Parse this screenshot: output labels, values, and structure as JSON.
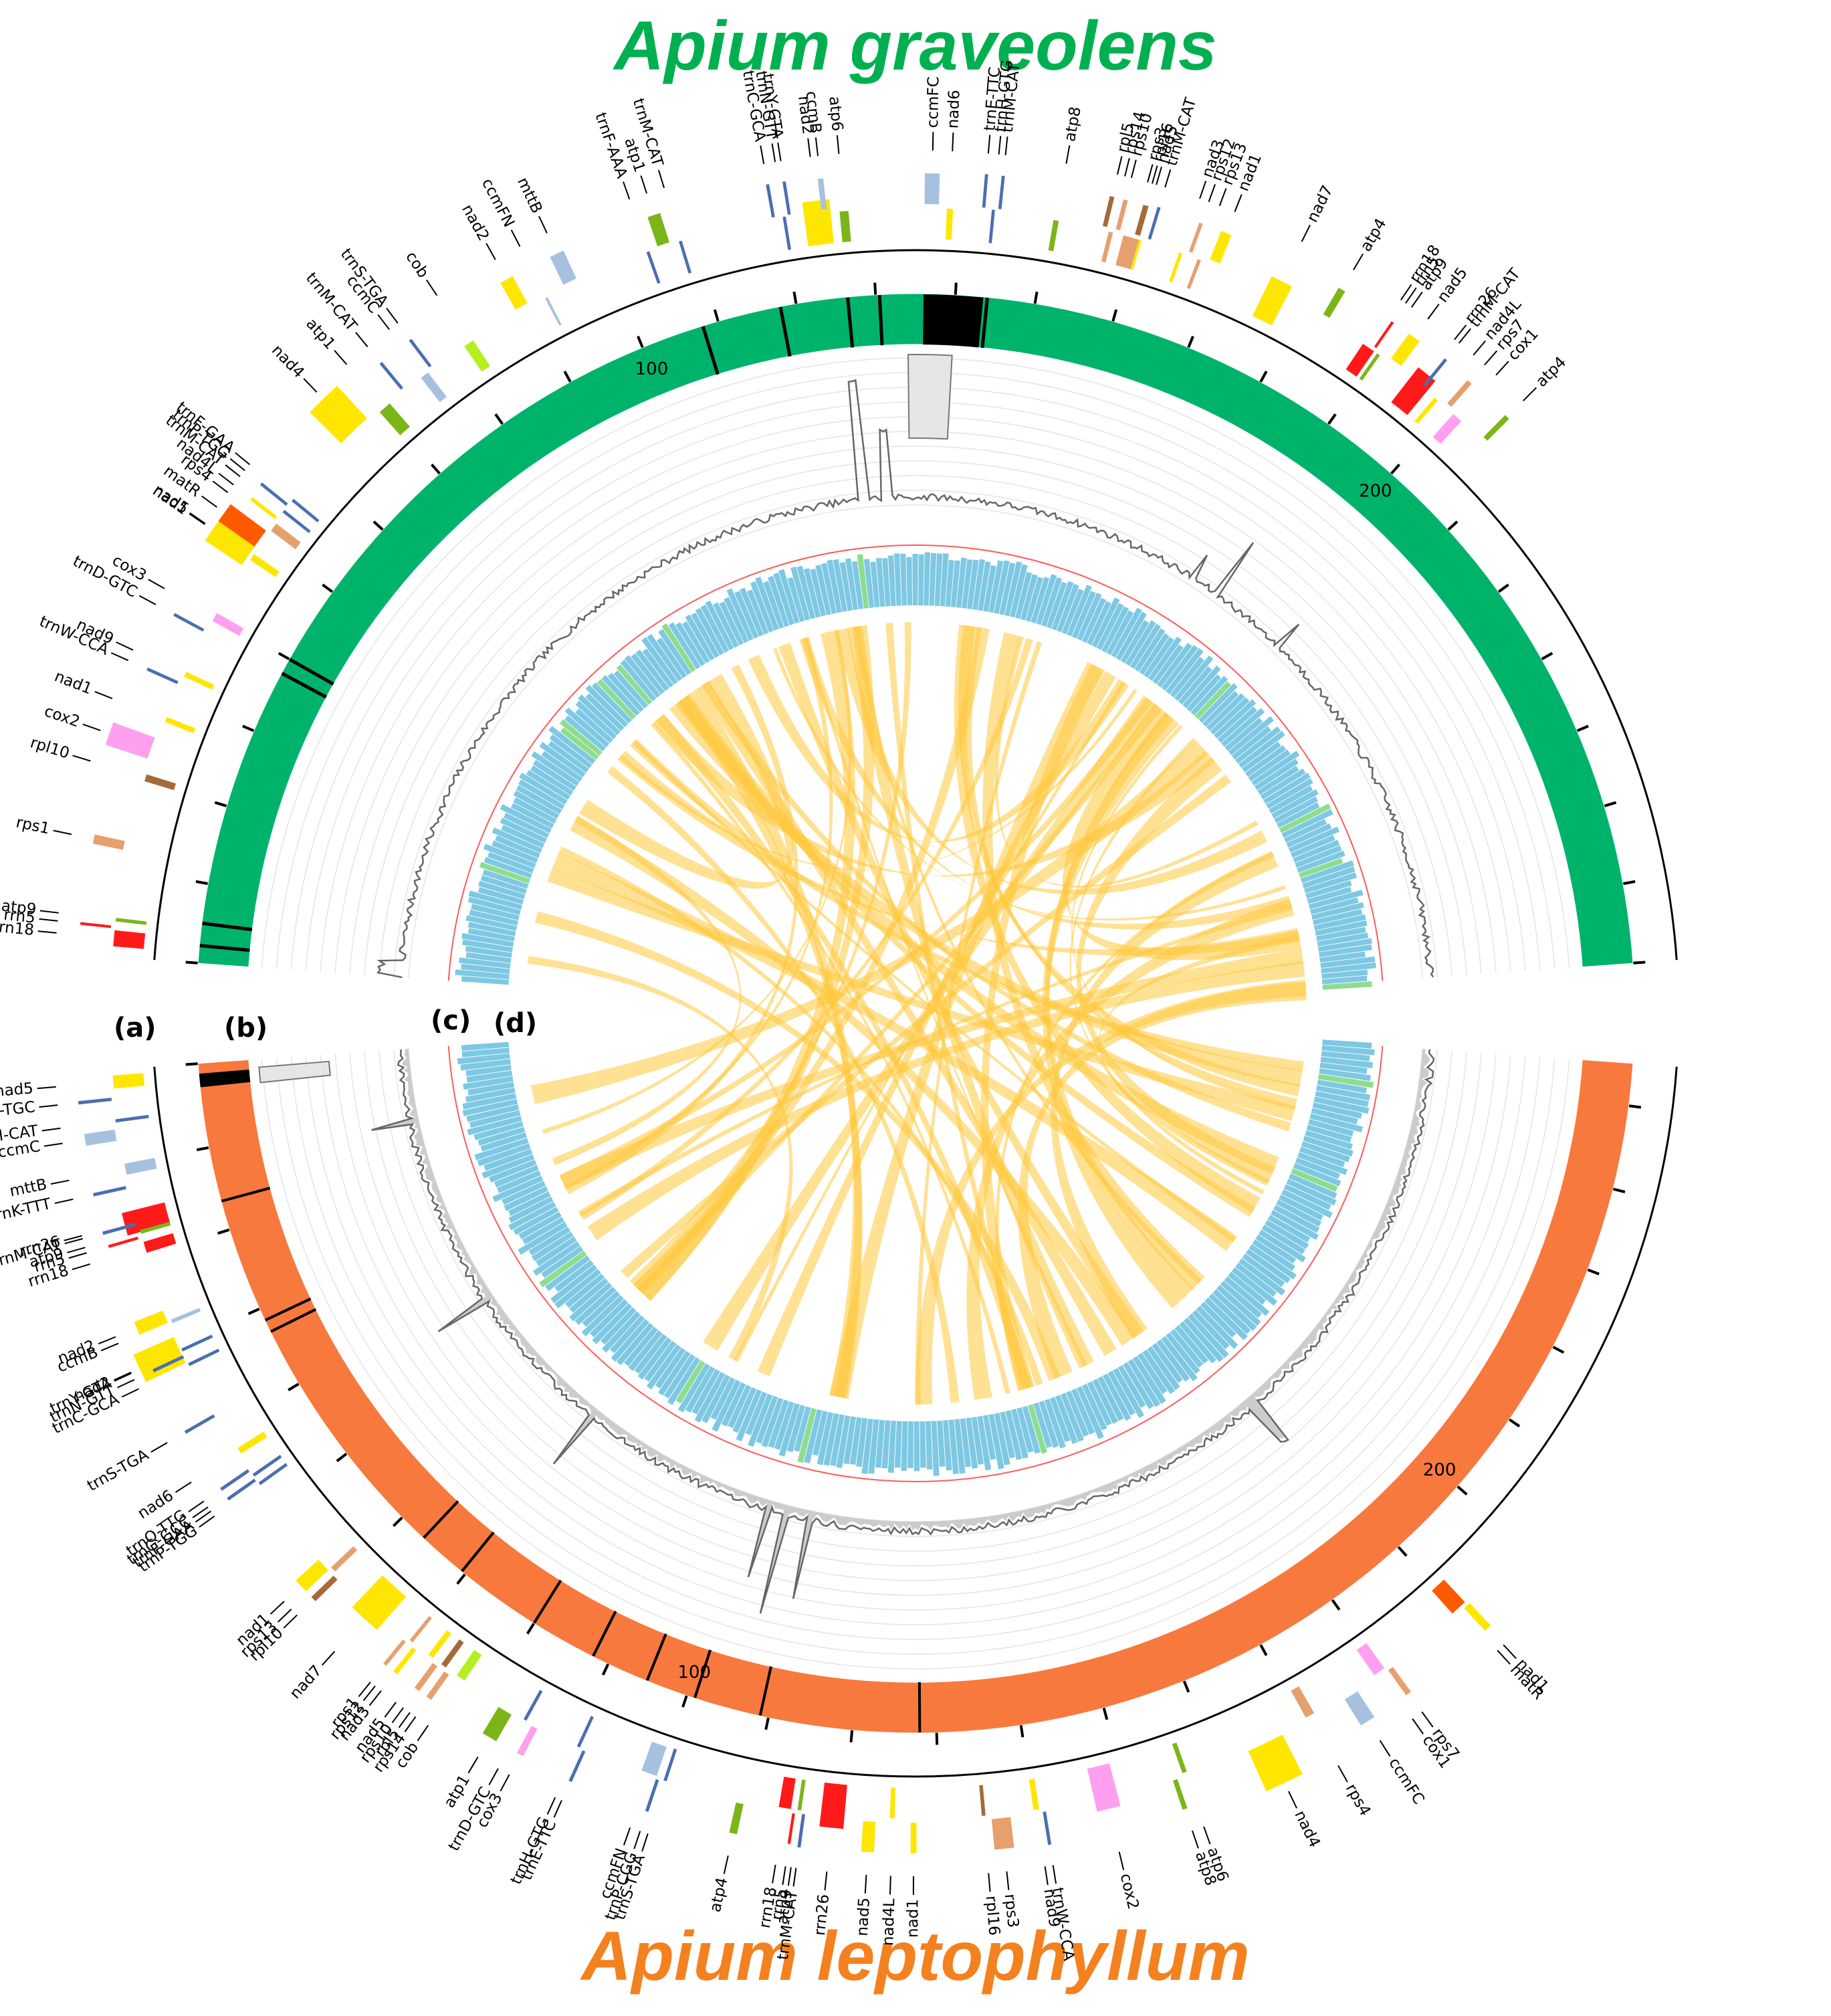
{
  "titles": {
    "top": "Apium graveolens",
    "top_color": "#00b050",
    "bottom": "Apium leptophyllum",
    "bottom_color": "#f4811f"
  },
  "panels": [
    "(a)",
    "(b)",
    "(c)",
    "(d)"
  ],
  "colors": {
    "graveolens_block": "#00b36b",
    "leptophyllum_block": "#f8793d",
    "gc_bar": "#7ec8e3",
    "gc_highlight": "#8fdc8f",
    "ref_line": "#ff5a5a",
    "link": "#ffc83c",
    "depth_line": "#666666",
    "depth_fill": "#cccccc",
    "trn": "#4a6fb0",
    "nad": "#ffe600",
    "atp": "#7cb518",
    "cox": "#ff9ff0",
    "ccm": "#a6c1e0",
    "rps": "#e6a06e",
    "rpl": "#a56a3a",
    "rrn": "#ff1a1a",
    "mat": "#ff5a00",
    "cob": "#b4f020",
    "mtt": "#a6c1e0"
  },
  "scale": {
    "top": {
      "ticks": [
        100,
        200
      ],
      "length": 270
    },
    "bottom": {
      "ticks": [
        100,
        200
      ],
      "length": 255
    }
  },
  "genes_top": [
    {
      "name": "rrn18",
      "type": "rrn",
      "pos": 1.2,
      "len": 1.8
    },
    {
      "name": "rrn5",
      "type": "rrn",
      "pos": 3.2,
      "len": 0.3
    },
    {
      "name": "atp9",
      "type": "atp",
      "pos": 4.0,
      "len": 0.4
    },
    {
      "name": "rps1",
      "type": "rps",
      "pos": 12,
      "len": 1.0
    },
    {
      "name": "rpl10",
      "type": "rpl",
      "pos": 20,
      "len": 0.8
    },
    {
      "name": "cox2",
      "type": "cox",
      "pos": 22.5,
      "len": 2.5
    },
    {
      "name": "nad1",
      "type": "nad",
      "pos": 27,
      "len": 0.6
    },
    {
      "name": "trnW-CCA",
      "type": "trn",
      "pos": 31.5,
      "len": 0.2
    },
    {
      "name": "nad9",
      "type": "nad",
      "pos": 32.5,
      "len": 0.6
    },
    {
      "name": "trnD-GTC",
      "type": "trn",
      "pos": 38,
      "len": 0.2
    },
    {
      "name": "cox3",
      "type": "cox",
      "pos": 39.5,
      "len": 1.0
    },
    {
      "name": "nad5",
      "type": "nad",
      "pos": 46.5,
      "len": 3.0
    },
    {
      "name": "nad1",
      "type": "nad",
      "pos": 47.5,
      "len": 0.8
    },
    {
      "name": "matR",
      "type": "mat",
      "pos": 49,
      "len": 2.2
    },
    {
      "name": "rps4",
      "type": "rps",
      "pos": 51.5,
      "len": 1.0
    },
    {
      "name": "nad4L",
      "type": "nad",
      "pos": 52.8,
      "len": 0.4
    },
    {
      "name": "trnM-CAT",
      "type": "trn",
      "pos": 54,
      "len": 0.2
    },
    {
      "name": "trnP-TGG",
      "type": "trn",
      "pos": 54.8,
      "len": 0.2
    },
    {
      "name": "trnF-GAA",
      "type": "trn",
      "pos": 55.6,
      "len": 0.2
    },
    {
      "name": "nad4",
      "type": "nad",
      "pos": 64,
      "len": 4.0
    },
    {
      "name": "atp1",
      "type": "atp",
      "pos": 69.5,
      "len": 1.5
    },
    {
      "name": "trnM-CAT",
      "type": "trn",
      "pos": 73,
      "len": 0.2
    },
    {
      "name": "ccmC",
      "type": "ccm",
      "pos": 75.5,
      "len": 1.0
    },
    {
      "name": "trnS-TGA",
      "type": "trn",
      "pos": 77,
      "len": 0.2
    },
    {
      "name": "cob",
      "type": "cob",
      "pos": 81.5,
      "len": 1.2
    },
    {
      "name": "nad2",
      "type": "nad",
      "pos": 88.5,
      "len": 1.5
    },
    {
      "name": "ccmFN",
      "type": "ccm",
      "pos": 92,
      "len": 0.3
    },
    {
      "name": "mttB",
      "type": "mtt",
      "pos": 94.5,
      "len": 1.6
    },
    {
      "name": "trnF-AAA",
      "type": "trn",
      "pos": 104.5,
      "len": 0.2
    },
    {
      "name": "atp1",
      "type": "atp",
      "pos": 105.8,
      "len": 1.4
    },
    {
      "name": "trnM-CAT",
      "type": "trn",
      "pos": 108.3,
      "len": 0.2
    },
    {
      "name": "trnC-GCA",
      "type": "trn",
      "pos": 119,
      "len": 0.2
    },
    {
      "name": "trnN-GTT",
      "type": "trn",
      "pos": 120.2,
      "len": 0.2
    },
    {
      "name": "trnY-GTA",
      "type": "trn",
      "pos": 120.8,
      "len": 0.2
    },
    {
      "name": "nad2",
      "type": "nad",
      "pos": 122.5,
      "len": 3.0
    },
    {
      "name": "ccmB",
      "type": "ccm",
      "pos": 124.5,
      "len": 0.6
    },
    {
      "name": "atp6",
      "type": "atp",
      "pos": 126.5,
      "len": 1.0
    },
    {
      "name": "ccmFC",
      "type": "ccm",
      "pos": 136,
      "len": 1.6
    },
    {
      "name": "nad6",
      "type": "nad",
      "pos": 138.5,
      "len": 0.7
    },
    {
      "name": "trnE-TTC",
      "type": "trn",
      "pos": 142.5,
      "len": 0.2
    },
    {
      "name": "trnH-GTG",
      "type": "trn",
      "pos": 143.6,
      "len": 0.2
    },
    {
      "name": "trnM-CAT",
      "type": "trn",
      "pos": 144.3,
      "len": 0.2
    },
    {
      "name": "atp8",
      "type": "atp",
      "pos": 150.5,
      "len": 0.6
    },
    {
      "name": "rpl5",
      "type": "rpl",
      "pos": 156,
      "len": 0.5
    },
    {
      "name": "rps14",
      "type": "rps",
      "pos": 156.8,
      "len": 0.5
    },
    {
      "name": "rps10",
      "type": "rps",
      "pos": 157.5,
      "len": 0.5
    },
    {
      "name": "rps3",
      "type": "rps",
      "pos": 158.5,
      "len": 2.0
    },
    {
      "name": "rpl16",
      "type": "rpl",
      "pos": 159.7,
      "len": 0.6
    },
    {
      "name": "nad5",
      "type": "nad",
      "pos": 160.3,
      "len": 0.3
    },
    {
      "name": "trnM-CAT",
      "type": "trn",
      "pos": 161.3,
      "len": 0.2
    },
    {
      "name": "nad3",
      "type": "nad",
      "pos": 165,
      "len": 0.4
    },
    {
      "name": "rps12",
      "type": "rps",
      "pos": 166,
      "len": 0.4
    },
    {
      "name": "rps13",
      "type": "rps",
      "pos": 167.2,
      "len": 0.4
    },
    {
      "name": "nad1",
      "type": "nad",
      "pos": 168.5,
      "len": 1.2
    },
    {
      "name": "nad7",
      "type": "nad",
      "pos": 175.5,
      "len": 2.5
    },
    {
      "name": "atp4",
      "type": "atp",
      "pos": 182.5,
      "len": 0.8
    },
    {
      "name": "rrn18",
      "type": "rrn",
      "pos": 188,
      "len": 1.5
    },
    {
      "name": "rrn5",
      "type": "rrn",
      "pos": 189.2,
      "len": 0.3
    },
    {
      "name": "atp9",
      "type": "atp",
      "pos": 189.9,
      "len": 0.4
    },
    {
      "name": "nad5",
      "type": "nad",
      "pos": 191.5,
      "len": 1.4
    },
    {
      "name": "rrn26",
      "type": "rrn",
      "pos": 194.5,
      "len": 2.4
    },
    {
      "name": "trnM-CAT",
      "type": "trn",
      "pos": 196.2,
      "len": 0.2
    },
    {
      "name": "nad4L",
      "type": "nad",
      "pos": 198,
      "len": 0.5
    },
    {
      "name": "rps7",
      "type": "rps",
      "pos": 199.5,
      "len": 0.6
    },
    {
      "name": "cox1",
      "type": "cox",
      "pos": 200.8,
      "len": 1.2
    },
    {
      "name": "atp4",
      "type": "atp",
      "pos": 205,
      "len": 0.6
    }
  ],
  "genes_bottom": [
    {
      "name": "nad5",
      "type": "nad",
      "pos": 0.6,
      "len": 1.4
    },
    {
      "name": "trnA-TGC",
      "type": "trn",
      "pos": 3.0,
      "len": 0.2
    },
    {
      "name": "trnM-CAT",
      "type": "trn",
      "pos": 5.3,
      "len": 0.2
    },
    {
      "name": "ccmC",
      "type": "ccm",
      "pos": 6.3,
      "len": 1.2
    },
    {
      "name": "mttB",
      "type": "mtt",
      "pos": 10,
      "len": 1.2
    },
    {
      "name": "trnK-TTT",
      "type": "trn",
      "pos": 12.4,
      "len": 0.2
    },
    {
      "name": "rrn26",
      "type": "rrn",
      "pos": 15,
      "len": 2.4
    },
    {
      "name": "trnM-CAT",
      "type": "trn",
      "pos": 16.4,
      "len": 0.2
    },
    {
      "name": "atp9",
      "type": "atp",
      "pos": 17.2,
      "len": 0.4
    },
    {
      "name": "rrn5",
      "type": "rrn",
      "pos": 17.8,
      "len": 0.3
    },
    {
      "name": "rrn18",
      "type": "rrn",
      "pos": 18.5,
      "len": 1.2
    },
    {
      "name": "nad2",
      "type": "nad",
      "pos": 26,
      "len": 1.4
    },
    {
      "name": "ccmB",
      "type": "ccm",
      "pos": 27.2,
      "len": 0.4
    },
    {
      "name": "nad2",
      "type": "nad",
      "pos": 29,
      "len": 3.0
    },
    {
      "name": "trnY-GTA",
      "type": "trn",
      "pos": 30.5,
      "len": 0.2
    },
    {
      "name": "trnN-GTT",
      "type": "trn",
      "pos": 31.2,
      "len": 0.2
    },
    {
      "name": "trnC-GCA",
      "type": "trn",
      "pos": 32.2,
      "len": 0.2
    },
    {
      "name": "trnS-TGA",
      "type": "trn",
      "pos": 38.2,
      "len": 0.2
    },
    {
      "name": "nad6",
      "type": "nad",
      "pos": 42.5,
      "len": 0.7
    },
    {
      "name": "trnQ-TTG",
      "type": "trn",
      "pos": 45,
      "len": 0.2
    },
    {
      "name": "trnG-GCC",
      "type": "trn",
      "pos": 45.7,
      "len": 0.2
    },
    {
      "name": "trnF-GAA",
      "type": "trn",
      "pos": 46.2,
      "len": 0.2
    },
    {
      "name": "trnP-TGG",
      "type": "trn",
      "pos": 46.8,
      "len": 0.2
    },
    {
      "name": "nad1",
      "type": "nad",
      "pos": 57,
      "len": 1.5
    },
    {
      "name": "rps13",
      "type": "rps",
      "pos": 58.5,
      "len": 0.6
    },
    {
      "name": "rpl10",
      "type": "rpl",
      "pos": 59.3,
      "len": 0.6
    },
    {
      "name": "nad7",
      "type": "nad",
      "pos": 63,
      "len": 3.5
    },
    {
      "name": "rps1",
      "type": "rps",
      "pos": 69.2,
      "len": 0.4
    },
    {
      "name": "rps12",
      "type": "rps",
      "pos": 69.8,
      "len": 0.4
    },
    {
      "name": "nad3",
      "type": "nad",
      "pos": 70.5,
      "len": 0.5
    },
    {
      "name": "nad5",
      "type": "nad",
      "pos": 72.3,
      "len": 0.6
    },
    {
      "name": "rps10",
      "type": "rps",
      "pos": 73.2,
      "len": 0.6
    },
    {
      "name": "rpl5",
      "type": "rpl",
      "pos": 74.0,
      "len": 0.6
    },
    {
      "name": "rps14",
      "type": "rps",
      "pos": 74.7,
      "len": 0.6
    },
    {
      "name": "cob",
      "type": "cob",
      "pos": 76,
      "len": 1.0
    },
    {
      "name": "atp1",
      "type": "atp",
      "pos": 81.5,
      "len": 1.6
    },
    {
      "name": "trnD-GTC",
      "type": "trn",
      "pos": 84.5,
      "len": 0.2
    },
    {
      "name": "cox3",
      "type": "cox",
      "pos": 85.5,
      "len": 0.7
    },
    {
      "name": "trnH-GTG",
      "type": "trn",
      "pos": 90.8,
      "len": 0.2
    },
    {
      "name": "trnE-TTC",
      "type": "trn",
      "pos": 91.5,
      "len": 0.2
    },
    {
      "name": "ccmFN",
      "type": "ccm",
      "pos": 98,
      "len": 1.7
    },
    {
      "name": "trnP-CGG",
      "type": "trn",
      "pos": 99.8,
      "len": 0.2
    },
    {
      "name": "trnS-TGA",
      "type": "trn",
      "pos": 100.6,
      "len": 0.2
    },
    {
      "name": "atp4",
      "type": "atp",
      "pos": 108.5,
      "len": 0.8
    },
    {
      "name": "rrn18",
      "type": "rrn",
      "pos": 113,
      "len": 1.3
    },
    {
      "name": "rrn5",
      "type": "rrn",
      "pos": 114.5,
      "len": 0.3
    },
    {
      "name": "atp9",
      "type": "atp",
      "pos": 115.0,
      "len": 0.4
    },
    {
      "name": "trnM-CAT",
      "type": "trn",
      "pos": 115.6,
      "len": 0.2
    },
    {
      "name": "rrn26",
      "type": "rrn",
      "pos": 117.5,
      "len": 2.5
    },
    {
      "name": "nad5",
      "type": "nad",
      "pos": 122,
      "len": 1.3
    },
    {
      "name": "nad4L",
      "type": "nad",
      "pos": 124.8,
      "len": 0.5
    },
    {
      "name": "nad1",
      "type": "nad",
      "pos": 127,
      "len": 0.6
    },
    {
      "name": "rpl16",
      "type": "rpl",
      "pos": 134.5,
      "len": 0.4
    },
    {
      "name": "rps3",
      "type": "rps",
      "pos": 135.5,
      "len": 2.0
    },
    {
      "name": "nad9",
      "type": "nad",
      "pos": 140,
      "len": 0.6
    },
    {
      "name": "trnW-CCA",
      "type": "trn",
      "pos": 141,
      "len": 0.2
    },
    {
      "name": "cox2",
      "type": "cox",
      "pos": 146.5,
      "len": 2.5
    },
    {
      "name": "atp8",
      "type": "atp",
      "pos": 155,
      "len": 0.5
    },
    {
      "name": "atp6",
      "type": "atp",
      "pos": 156.2,
      "len": 0.5
    },
    {
      "name": "nad4",
      "type": "nad",
      "pos": 163.5,
      "len": 4.0
    },
    {
      "name": "rps4",
      "type": "rps",
      "pos": 170.5,
      "len": 1.0
    },
    {
      "name": "ccmFC",
      "type": "ccm",
      "pos": 175,
      "len": 1.6
    },
    {
      "name": "cox1",
      "type": "cox",
      "pos": 179,
      "len": 1.3
    },
    {
      "name": "rps7",
      "type": "rps",
      "pos": 180.5,
      "len": 0.6
    },
    {
      "name": "matR",
      "type": "mat",
      "pos": 189.5,
      "len": 1.8
    },
    {
      "name": "nad1",
      "type": "nad",
      "pos": 190.8,
      "len": 0.8
    }
  ],
  "blocks_top": {
    "boundaries": [
      2.2,
      5,
      38,
      40,
      108,
      118,
      126.5,
      130.5,
      144
    ]
  },
  "blocks_bottom": {
    "boundaries": [
      16.5,
      31.5,
      33,
      63.5,
      69.5,
      80,
      88,
      95,
      101,
      109,
      128
    ]
  }
}
